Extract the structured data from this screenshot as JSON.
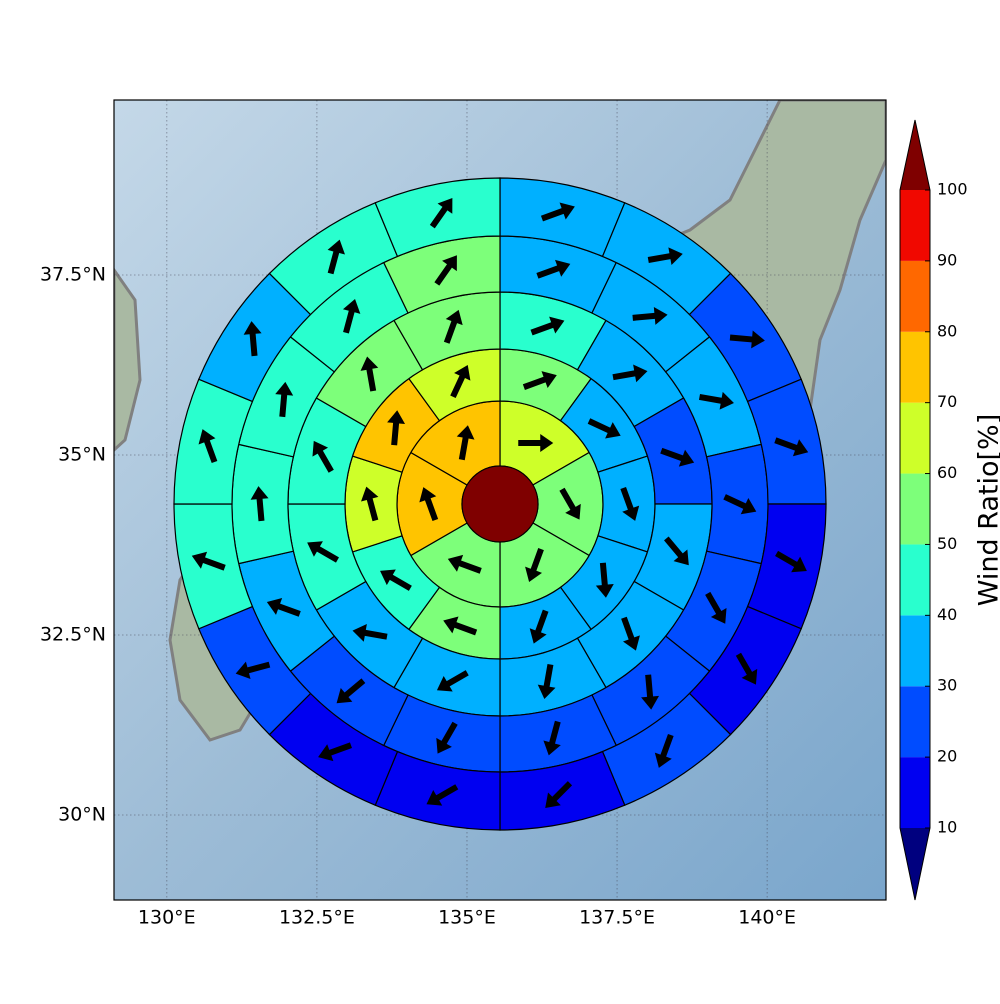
{
  "chart_data": {
    "type": "polar-sectors",
    "xlim": [
      129.12,
      141.98
    ],
    "ylim": [
      28.82,
      39.93
    ],
    "xticks": [
      {
        "value": 130,
        "label": "130°E"
      },
      {
        "value": 132.5,
        "label": "132.5°E"
      },
      {
        "value": 135,
        "label": "135°E"
      },
      {
        "value": 137.5,
        "label": "137.5°E"
      },
      {
        "value": 140,
        "label": "140°E"
      }
    ],
    "yticks": [
      {
        "value": 30,
        "label": "30°N"
      },
      {
        "value": 32.5,
        "label": "32.5°N"
      },
      {
        "value": 35,
        "label": "35°N"
      },
      {
        "value": 37.5,
        "label": "37.5°N"
      }
    ],
    "grid": true,
    "rings": [
      {
        "values": [
          65,
          55,
          55,
          55,
          75,
          75
        ],
        "directions": [
          90,
          150,
          200,
          290,
          340,
          10
        ]
      },
      {
        "values": [
          55,
          35,
          35,
          35,
          35,
          55,
          45,
          65,
          75,
          65
        ],
        "directions": [
          70,
          115,
          160,
          175,
          200,
          290,
          300,
          345,
          5,
          25
        ]
      },
      {
        "values": [
          45,
          35,
          25,
          35,
          35,
          35,
          35,
          35,
          45,
          45,
          55,
          55
        ],
        "directions": [
          70,
          80,
          110,
          140,
          160,
          190,
          240,
          280,
          300,
          330,
          350,
          20
        ]
      },
      {
        "values": [
          35,
          35,
          35,
          25,
          25,
          25,
          25,
          25,
          25,
          35,
          45,
          45,
          45,
          55
        ],
        "directions": [
          70,
          85,
          100,
          115,
          150,
          175,
          195,
          210,
          230,
          290,
          355,
          5,
          15,
          35
        ]
      },
      {
        "values": [
          35,
          35,
          25,
          25,
          15,
          15,
          25,
          15,
          15,
          15,
          25,
          45,
          45,
          35,
          45,
          45
        ],
        "directions": [
          70,
          80,
          95,
          110,
          120,
          150,
          200,
          225,
          240,
          250,
          255,
          290,
          340,
          355,
          15,
          35
        ]
      }
    ],
    "colorbar": {
      "label": "Wind Ratio[%]",
      "levels": [
        10,
        20,
        30,
        40,
        50,
        60,
        70,
        80,
        90,
        100
      ],
      "colors": [
        "#00007f",
        "#0000f1",
        "#004cff",
        "#00b0ff",
        "#29ffce",
        "#7dff7a",
        "#ceff29",
        "#ffc400",
        "#ff6800",
        "#f10800",
        "#7f0000"
      ]
    }
  }
}
